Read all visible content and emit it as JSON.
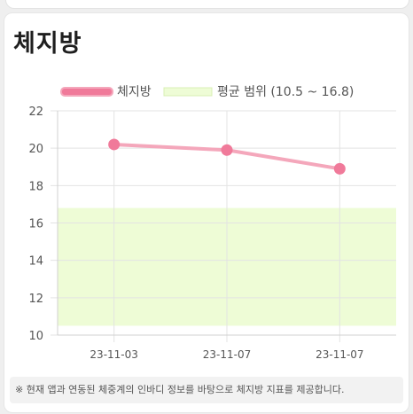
{
  "card": {
    "title": "체지방"
  },
  "footer": {
    "note": "※ 현재 앱과 연동된 체중계의 인바디 정보를 바탕으로 체지방 지표를 제공합니다."
  },
  "chart_data": {
    "type": "line",
    "title": "",
    "categories": [
      "23-11-03",
      "23-11-07",
      "23-11-07"
    ],
    "series": [
      {
        "name": "체지방",
        "values": [
          20.2,
          19.9,
          18.9
        ],
        "color": "#f07a9a",
        "line_color": "#f4a7bb"
      }
    ],
    "average_range": {
      "label": "평균 범위 (10.5 ~ 16.8)",
      "min": 10.5,
      "max": 16.8,
      "color": "#eefcd6"
    },
    "ylim": [
      10,
      22
    ],
    "yticks": [
      10,
      12,
      14,
      16,
      18,
      20,
      22
    ],
    "grid": true,
    "legend_position": "top"
  }
}
